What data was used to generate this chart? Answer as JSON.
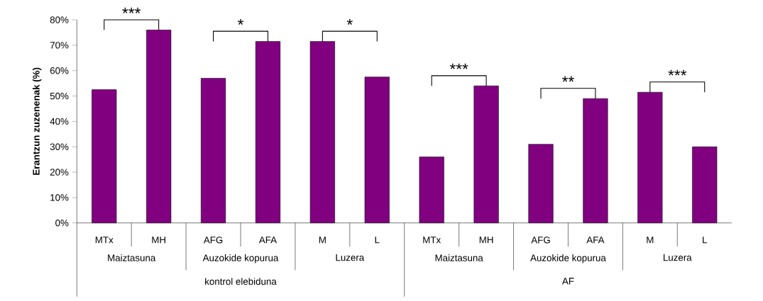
{
  "chart_data": {
    "type": "bar",
    "ylabel": "Erantzun zuzenenak (%)",
    "categories": [
      "MTx",
      "MH",
      "AFG",
      "AFA",
      "M",
      "L",
      "MTx",
      "MH",
      "AFG",
      "AFA",
      "M",
      "L"
    ],
    "values": [
      52.5,
      76,
      57,
      71.5,
      71.5,
      57.5,
      26,
      54,
      31,
      49,
      51.5,
      30
    ],
    "color": "#800080",
    "ylim": [
      0,
      80
    ],
    "yticks": [
      {
        "value": 0,
        "label": "0%"
      },
      {
        "value": 10,
        "label": "10%"
      },
      {
        "value": 20,
        "label": "20%"
      },
      {
        "value": 30,
        "label": "30%"
      },
      {
        "value": 40,
        "label": "40%"
      },
      {
        "value": 50,
        "label": "50%"
      },
      {
        "value": 60,
        "label": "60%"
      },
      {
        "value": 70,
        "label": "70%"
      },
      {
        "value": 80,
        "label": "80%"
      }
    ],
    "annotations": [
      "***",
      "*",
      "*",
      "***",
      "**",
      "***",
      "Maiztasuna",
      "Auzokide kopurua",
      "Luzera",
      "Maiztasuna",
      "Auzokide kopurua",
      "Luzera",
      "kontrol elebiduna",
      "AF"
    ]
  }
}
